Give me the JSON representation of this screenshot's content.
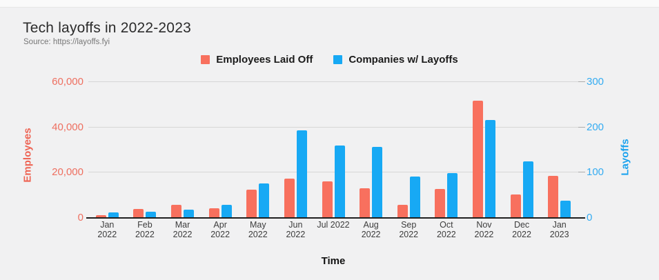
{
  "header": {
    "title": "Tech layoffs in 2022-2023",
    "source": "Source: https://layoffs.fyi"
  },
  "legend": {
    "items": [
      {
        "label": "Employees Laid Off",
        "color": "#f8705e"
      },
      {
        "label": "Companies w/ Layoffs",
        "color": "#17a9f4"
      }
    ]
  },
  "chart_data": {
    "type": "bar",
    "title": "Tech layoffs in 2022-2023",
    "xlabel": "Time",
    "grid": true,
    "legend_position": "top",
    "categories": [
      [
        "Jan",
        "2022"
      ],
      [
        "Feb",
        "2022"
      ],
      [
        "Mar",
        "2022"
      ],
      [
        "Apr",
        "2022"
      ],
      [
        "May",
        "2022"
      ],
      [
        "Jun",
        "2022"
      ],
      [
        "Jul 2022"
      ],
      [
        "Aug",
        "2022"
      ],
      [
        "Sep",
        "2022"
      ],
      [
        "Oct",
        "2022"
      ],
      [
        "Nov",
        "2022"
      ],
      [
        "Dec",
        "2022"
      ],
      [
        "Jan",
        "2023"
      ]
    ],
    "series": [
      {
        "name": "Employees Laid Off",
        "axis": "left",
        "color": "#f8705e",
        "values": [
          1000,
          3600,
          5600,
          3900,
          12200,
          17200,
          15800,
          12800,
          5600,
          12400,
          51500,
          10000,
          18400
        ]
      },
      {
        "name": "Companies w/ Layoffs",
        "axis": "right",
        "color": "#17a9f4",
        "values": [
          10,
          12,
          17,
          28,
          74,
          192,
          158,
          155,
          90,
          97,
          215,
          123,
          36
        ]
      }
    ],
    "left_axis": {
      "label": "Employees",
      "ticks": [
        0,
        20000,
        40000,
        60000
      ],
      "min": 0,
      "max": 60000,
      "color": "#ee6f60"
    },
    "right_axis": {
      "label": "Layoffs",
      "ticks": [
        0,
        100,
        200,
        300
      ],
      "min": 0,
      "max": 300,
      "color": "#34acf2"
    }
  }
}
